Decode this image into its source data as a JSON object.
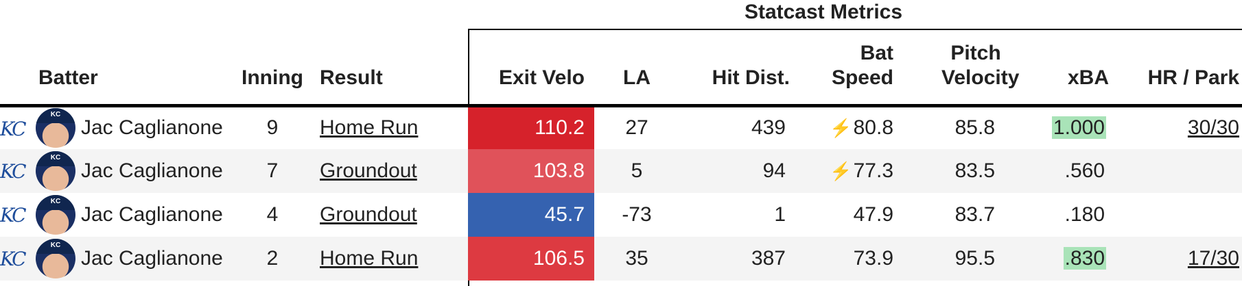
{
  "group_header": "Statcast Metrics",
  "columns": {
    "batter": "Batter",
    "inning": "Inning",
    "result": "Result",
    "exit_velo": "Exit Velo",
    "la": "LA",
    "hit_dist": "Hit Dist.",
    "bat_speed": "Bat Speed",
    "pitch_velocity": "Pitch Velocity",
    "xba": "xBA",
    "hr_park": "HR / Park"
  },
  "team_logo": {
    "text": "KC",
    "color": "#1e4d9b"
  },
  "avatar": {
    "cap_text": "KC"
  },
  "bolt_icon": "⚡",
  "rows": [
    {
      "batter": "Jac Caglianone",
      "inning": "9",
      "result": "Home Run",
      "exit_velo": "110.2",
      "ev_color": "#d6222b",
      "la": "27",
      "hit_dist": "439",
      "bat_speed": "80.8",
      "fast_swing": true,
      "pitch_velocity": "85.8",
      "xba": "1.000",
      "xba_color": "#a9e3b8",
      "hr_park": "30/30"
    },
    {
      "batter": "Jac Caglianone",
      "inning": "7",
      "result": "Groundout",
      "exit_velo": "103.8",
      "ev_color": "#e0525a",
      "la": "5",
      "hit_dist": "94",
      "bat_speed": "77.3",
      "fast_swing": true,
      "pitch_velocity": "83.5",
      "xba": ".560",
      "xba_color": "",
      "hr_park": ""
    },
    {
      "batter": "Jac Caglianone",
      "inning": "4",
      "result": "Groundout",
      "exit_velo": "45.7",
      "ev_color": "#3562b0",
      "la": "-73",
      "hit_dist": "1",
      "bat_speed": "47.9",
      "fast_swing": false,
      "pitch_velocity": "83.7",
      "xba": ".180",
      "xba_color": "",
      "hr_park": ""
    },
    {
      "batter": "Jac Caglianone",
      "inning": "2",
      "result": "Home Run",
      "exit_velo": "106.5",
      "ev_color": "#dd3a41",
      "la": "35",
      "hit_dist": "387",
      "bat_speed": "73.9",
      "fast_swing": false,
      "pitch_velocity": "95.5",
      "xba": ".830",
      "xba_color": "#a9e3b8",
      "hr_park": "17/30"
    }
  ]
}
